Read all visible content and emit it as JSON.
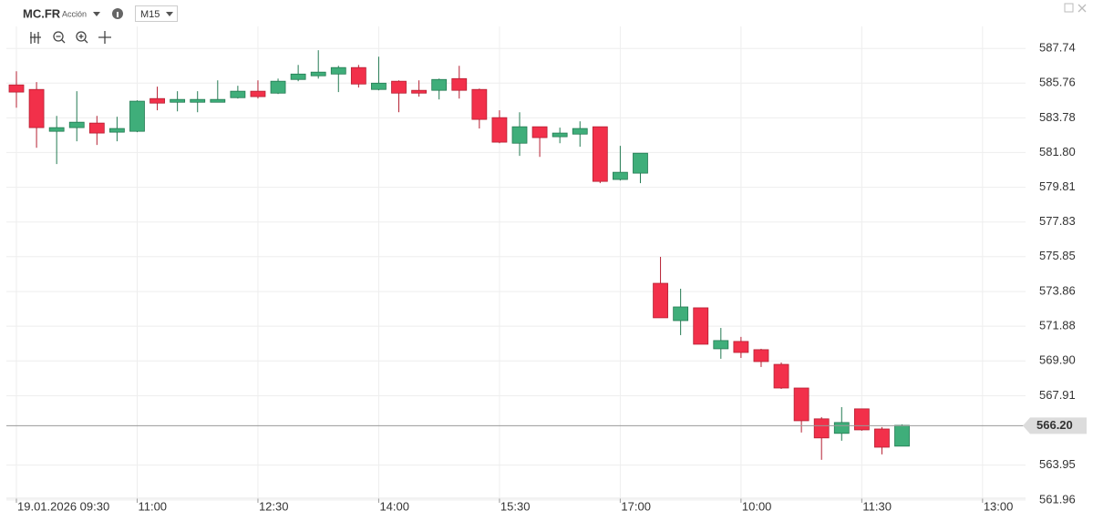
{
  "header": {
    "symbol": "MC.FR",
    "asset_type": "Acción",
    "timeframe": "M15"
  },
  "chart_data": {
    "type": "candlestick",
    "categories": [
      "19.01.2026 09:30",
      null,
      null,
      null,
      null,
      null,
      "11:00",
      null,
      null,
      null,
      null,
      null,
      "12:30",
      null,
      null,
      null,
      null,
      null,
      "14:00",
      null,
      null,
      null,
      null,
      null,
      "15:30",
      null,
      null,
      null,
      null,
      null,
      "17:00",
      null,
      null,
      null,
      null,
      null,
      "10:00",
      null,
      null,
      null,
      null,
      null,
      "11:30",
      null,
      null,
      null,
      null,
      null,
      "13:00"
    ],
    "open": [
      585.66,
      585.4,
      583.01,
      583.22,
      583.48,
      582.96,
      583.01,
      584.88,
      584.67,
      584.67,
      584.67,
      584.93,
      585.3,
      585.19,
      585.97,
      586.18,
      586.28,
      586.65,
      585.4,
      585.87,
      585.35,
      585.35,
      586.02,
      585.4,
      583.79,
      582.33,
      583.27,
      582.7,
      582.85,
      583.27,
      580.26,
      580.62,
      574.33,
      572.2,
      572.93,
      570.59,
      571.01,
      570.54,
      569.7,
      568.35,
      566.59,
      565.76,
      567.16,
      566.01,
      565.03,
      null,
      null,
      null,
      null
    ],
    "high": [
      586.44,
      585.82,
      583.89,
      585.3,
      583.89,
      583.84,
      584.78,
      585.56,
      585.3,
      585.3,
      585.92,
      585.61,
      585.92,
      586.02,
      586.8,
      587.64,
      586.75,
      586.8,
      587.27,
      585.92,
      585.92,
      586.02,
      586.75,
      585.45,
      584.21,
      584.1,
      583.27,
      583.22,
      583.58,
      583.27,
      582.18,
      581.76,
      575.84,
      574.02,
      572.93,
      571.78,
      571.27,
      570.59,
      569.81,
      568.35,
      566.69,
      567.26,
      567.16,
      566.12,
      566.27,
      null,
      null,
      null,
      null
    ],
    "low": [
      584.36,
      582.07,
      581.14,
      582.44,
      582.23,
      582.44,
      582.96,
      584.21,
      584.15,
      584.1,
      584.67,
      584.88,
      584.88,
      585.14,
      585.87,
      586.02,
      585.25,
      585.51,
      585.35,
      584.1,
      584.99,
      584.83,
      584.88,
      583.17,
      582.33,
      581.61,
      581.55,
      582.33,
      582.13,
      580.05,
      580.2,
      580.05,
      572.36,
      571.37,
      570.85,
      570.02,
      570.07,
      569.55,
      568.3,
      565.81,
      564.25,
      565.34,
      565.91,
      564.56,
      565.03,
      null,
      null,
      null,
      null
    ],
    "close": [
      585.25,
      583.22,
      583.22,
      583.53,
      582.91,
      583.17,
      584.73,
      584.62,
      584.83,
      584.83,
      584.83,
      585.3,
      584.99,
      585.87,
      586.28,
      586.39,
      586.65,
      585.71,
      585.76,
      585.19,
      585.19,
      585.97,
      585.35,
      583.69,
      582.39,
      583.27,
      582.65,
      582.91,
      583.17,
      580.15,
      580.67,
      581.76,
      572.36,
      572.98,
      570.85,
      571.06,
      570.38,
      569.86,
      568.35,
      566.48,
      565.5,
      566.38,
      565.96,
      564.97,
      566.22,
      null,
      null,
      null,
      null
    ],
    "up_color": "#3fae7a",
    "down_color": "#f2304a",
    "ylim": [
      561.9,
      589.0
    ],
    "yticks": [
      {
        "value": 561.96,
        "label": "561.96"
      },
      {
        "value": 563.95,
        "label": "563.95"
      },
      {
        "value": 567.91,
        "label": "567.91"
      },
      {
        "value": 569.9,
        "label": "569.90"
      },
      {
        "value": 571.88,
        "label": "571.88"
      },
      {
        "value": 573.86,
        "label": "573.86"
      },
      {
        "value": 575.85,
        "label": "575.85"
      },
      {
        "value": 577.83,
        "label": "577.83"
      },
      {
        "value": 579.81,
        "label": "579.81"
      },
      {
        "value": 581.8,
        "label": "581.80"
      },
      {
        "value": 583.78,
        "label": "583.78"
      },
      {
        "value": 585.76,
        "label": "585.76"
      },
      {
        "value": 587.74,
        "label": "587.74"
      }
    ],
    "last_price": {
      "value": 566.2,
      "label": "566.20"
    },
    "grid": true
  }
}
